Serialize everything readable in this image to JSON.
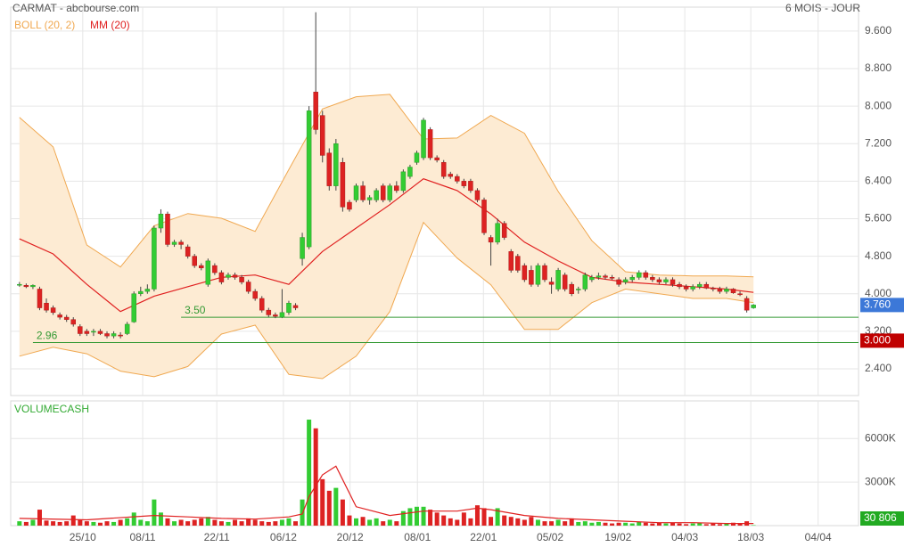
{
  "chart_data": {
    "type": "candlestick",
    "title": "CARMAT - abcbourse.com",
    "subtitle": "6 MOIS - JOUR",
    "xlim": [
      -1.3,
      124.6
    ],
    "xticks": [
      {
        "value": 9.4,
        "label": "25/10"
      },
      {
        "value": 18.3,
        "label": "08/11"
      },
      {
        "value": 29.3,
        "label": "22/11"
      },
      {
        "value": 39.2,
        "label": "06/12"
      },
      {
        "value": 49.1,
        "label": "20/12"
      },
      {
        "value": 59.1,
        "label": "08/01"
      },
      {
        "value": 68.9,
        "label": "22/01"
      },
      {
        "value": 78.8,
        "label": "05/02"
      },
      {
        "value": 88.9,
        "label": "19/02"
      },
      {
        "value": 98.8,
        "label": "04/03"
      },
      {
        "value": 108.6,
        "label": "18/03"
      },
      {
        "value": 118.6,
        "label": "04/04"
      }
    ],
    "ylim": [
      1.83,
      10.11
    ],
    "yticks": [
      {
        "value": 9.6,
        "label": "9.600"
      },
      {
        "value": 8.8,
        "label": "8.800"
      },
      {
        "value": 8.0,
        "label": "8.000"
      },
      {
        "value": 7.2,
        "label": "7.200"
      },
      {
        "value": 6.4,
        "label": "6.400"
      },
      {
        "value": 5.6,
        "label": "5.600"
      },
      {
        "value": 4.8,
        "label": "4.800"
      },
      {
        "value": 4.0,
        "label": "4.000"
      },
      {
        "value": 3.2,
        "label": "3.200"
      },
      {
        "value": 2.4,
        "label": "2.400"
      }
    ],
    "grid": true,
    "up_color": "#33cc33",
    "down_color": "#dd2222",
    "candles": [
      [
        4.2,
        4.25,
        4.15,
        4.2
      ],
      [
        4.18,
        4.22,
        4.12,
        4.15
      ],
      [
        4.15,
        4.2,
        4.1,
        4.18
      ],
      [
        4.1,
        4.15,
        3.65,
        3.7
      ],
      [
        3.8,
        3.9,
        3.6,
        3.65
      ],
      [
        3.7,
        3.75,
        3.55,
        3.6
      ],
      [
        3.55,
        3.6,
        3.45,
        3.5
      ],
      [
        3.5,
        3.55,
        3.4,
        3.45
      ],
      [
        3.45,
        3.5,
        3.3,
        3.35
      ],
      [
        3.3,
        3.35,
        3.1,
        3.15
      ],
      [
        3.2,
        3.25,
        3.1,
        3.15
      ],
      [
        3.18,
        3.25,
        3.1,
        3.2
      ],
      [
        3.2,
        3.25,
        3.12,
        3.15
      ],
      [
        3.15,
        3.2,
        3.05,
        3.1
      ],
      [
        3.1,
        3.2,
        3.05,
        3.15
      ],
      [
        3.12,
        3.18,
        3.05,
        3.1
      ],
      [
        3.15,
        3.4,
        3.12,
        3.35
      ],
      [
        3.4,
        4.05,
        3.38,
        4.0
      ],
      [
        4.0,
        4.15,
        3.95,
        4.05
      ],
      [
        4.05,
        4.2,
        4.0,
        4.1
      ],
      [
        4.1,
        5.45,
        4.05,
        5.4
      ],
      [
        5.4,
        5.8,
        5.3,
        5.7
      ],
      [
        5.7,
        5.75,
        5.0,
        5.05
      ],
      [
        5.05,
        5.15,
        5.0,
        5.1
      ],
      [
        5.1,
        5.15,
        4.95,
        5.05
      ],
      [
        5.0,
        5.05,
        4.75,
        4.8
      ],
      [
        4.8,
        4.85,
        4.55,
        4.6
      ],
      [
        4.6,
        4.65,
        4.5,
        4.55
      ],
      [
        4.2,
        4.75,
        4.15,
        4.7
      ],
      [
        4.6,
        4.65,
        4.4,
        4.45
      ],
      [
        4.45,
        4.5,
        4.2,
        4.25
      ],
      [
        4.35,
        4.45,
        4.3,
        4.4
      ],
      [
        4.4,
        4.45,
        4.3,
        4.35
      ],
      [
        4.35,
        4.4,
        4.2,
        4.25
      ],
      [
        4.25,
        4.3,
        4.0,
        4.05
      ],
      [
        4.05,
        4.1,
        3.85,
        3.9
      ],
      [
        3.9,
        3.95,
        3.6,
        3.65
      ],
      [
        3.65,
        3.7,
        3.5,
        3.55
      ],
      [
        3.55,
        3.6,
        3.48,
        3.52
      ],
      [
        3.5,
        4.1,
        3.48,
        3.6
      ],
      [
        3.6,
        3.85,
        3.55,
        3.8
      ],
      [
        3.75,
        3.8,
        3.65,
        3.7
      ],
      [
        4.75,
        5.3,
        4.6,
        5.2
      ],
      [
        5.0,
        8.0,
        4.95,
        7.9
      ],
      [
        8.3,
        10.0,
        7.4,
        7.5
      ],
      [
        7.8,
        7.9,
        6.8,
        6.95
      ],
      [
        7.0,
        7.1,
        6.2,
        6.3
      ],
      [
        6.3,
        7.3,
        6.2,
        7.2
      ],
      [
        6.8,
        6.9,
        5.75,
        5.85
      ],
      [
        5.95,
        6.0,
        5.75,
        5.8
      ],
      [
        6.0,
        6.35,
        5.95,
        6.3
      ],
      [
        6.3,
        6.4,
        5.95,
        6.0
      ],
      [
        6.0,
        6.1,
        5.9,
        6.05
      ],
      [
        6.0,
        6.25,
        5.95,
        6.2
      ],
      [
        6.3,
        6.35,
        5.95,
        6.0
      ],
      [
        6.0,
        6.35,
        5.95,
        6.3
      ],
      [
        6.3,
        6.4,
        6.15,
        6.2
      ],
      [
        6.2,
        6.65,
        6.15,
        6.6
      ],
      [
        6.5,
        6.75,
        6.45,
        6.7
      ],
      [
        6.8,
        7.05,
        6.75,
        7.0
      ],
      [
        6.9,
        7.75,
        6.85,
        7.7
      ],
      [
        7.5,
        7.55,
        6.85,
        6.9
      ],
      [
        6.9,
        6.95,
        6.8,
        6.85
      ],
      [
        6.8,
        6.85,
        6.45,
        6.5
      ],
      [
        6.55,
        6.6,
        6.45,
        6.5
      ],
      [
        6.5,
        6.55,
        6.35,
        6.4
      ],
      [
        6.4,
        6.45,
        6.25,
        6.3
      ],
      [
        6.4,
        6.45,
        6.15,
        6.2
      ],
      [
        6.2,
        6.25,
        5.95,
        6.0
      ],
      [
        6.0,
        6.05,
        5.25,
        5.3
      ],
      [
        5.2,
        5.25,
        4.6,
        5.1
      ],
      [
        5.1,
        5.6,
        5.05,
        5.5
      ],
      [
        5.5,
        5.55,
        5.15,
        5.2
      ],
      [
        4.9,
        4.95,
        4.45,
        4.5
      ],
      [
        4.8,
        4.85,
        4.45,
        4.5
      ],
      [
        4.6,
        4.65,
        4.25,
        4.3
      ],
      [
        4.5,
        4.6,
        4.15,
        4.2
      ],
      [
        4.2,
        4.65,
        4.15,
        4.6
      ],
      [
        4.6,
        4.65,
        4.25,
        4.3
      ],
      [
        4.25,
        4.35,
        4.0,
        4.2
      ],
      [
        4.1,
        4.55,
        4.05,
        4.5
      ],
      [
        4.4,
        4.45,
        4.05,
        4.1
      ],
      [
        4.2,
        4.25,
        3.95,
        4.0
      ],
      [
        4.1,
        4.15,
        4.0,
        4.1
      ],
      [
        4.1,
        4.45,
        4.05,
        4.4
      ],
      [
        4.3,
        4.4,
        4.25,
        4.35
      ],
      [
        4.35,
        4.45,
        4.3,
        4.38
      ],
      [
        4.38,
        4.42,
        4.3,
        4.35
      ],
      [
        4.35,
        4.4,
        4.3,
        4.33
      ],
      [
        4.3,
        4.35,
        4.15,
        4.2
      ],
      [
        4.25,
        4.35,
        4.2,
        4.3
      ],
      [
        4.3,
        4.4,
        4.25,
        4.35
      ],
      [
        4.35,
        4.5,
        4.3,
        4.45
      ],
      [
        4.45,
        4.5,
        4.3,
        4.35
      ],
      [
        4.35,
        4.4,
        4.25,
        4.3
      ],
      [
        4.3,
        4.35,
        4.2,
        4.25
      ],
      [
        4.25,
        4.35,
        4.2,
        4.3
      ],
      [
        4.3,
        4.35,
        4.15,
        4.2
      ],
      [
        4.2,
        4.25,
        4.1,
        4.15
      ],
      [
        4.15,
        4.2,
        4.05,
        4.1
      ],
      [
        4.1,
        4.2,
        4.05,
        4.15
      ],
      [
        4.15,
        4.25,
        4.1,
        4.2
      ],
      [
        4.2,
        4.25,
        4.1,
        4.12
      ],
      [
        4.12,
        4.15,
        4.05,
        4.1
      ],
      [
        4.1,
        4.15,
        4.0,
        4.05
      ],
      [
        4.05,
        4.15,
        4.0,
        4.1
      ],
      [
        4.1,
        4.12,
        4.0,
        4.02
      ],
      [
        4.0,
        4.05,
        3.95,
        3.98
      ],
      [
        3.9,
        3.95,
        3.6,
        3.65
      ],
      [
        3.7,
        3.78,
        3.68,
        3.76
      ]
    ],
    "bollinger": {
      "name": "BOLL (20, 2)",
      "color": "#f0a850",
      "fill": "#fdebd3",
      "x": [
        0,
        5,
        10,
        15,
        20,
        25,
        30,
        35,
        40,
        45,
        50,
        55,
        60,
        65,
        70,
        75,
        80,
        85,
        90,
        95,
        100,
        105,
        109
      ],
      "upper": [
        7.76,
        7.13,
        5.04,
        4.57,
        5.45,
        5.71,
        5.61,
        5.33,
        6.65,
        7.94,
        8.2,
        8.25,
        7.3,
        7.32,
        7.8,
        7.42,
        6.18,
        5.13,
        4.47,
        4.4,
        4.38,
        4.38,
        4.36
      ],
      "lower": [
        2.67,
        2.86,
        2.72,
        2.35,
        2.23,
        2.45,
        3.14,
        3.33,
        2.28,
        2.19,
        2.67,
        3.62,
        5.52,
        4.76,
        4.19,
        3.24,
        3.24,
        3.81,
        4.1,
        4.0,
        3.9,
        3.9,
        3.81
      ]
    },
    "ma": {
      "name": "MM (20)",
      "color": "#e02020",
      "x": [
        0,
        5,
        10,
        15,
        20,
        25,
        30,
        35,
        40,
        45,
        50,
        55,
        60,
        65,
        70,
        75,
        80,
        85,
        90,
        95,
        100,
        105,
        109
      ],
      "values": [
        5.17,
        4.85,
        4.2,
        3.62,
        3.95,
        4.15,
        4.35,
        4.4,
        4.2,
        4.9,
        5.4,
        5.9,
        6.45,
        6.2,
        5.7,
        5.1,
        4.7,
        4.35,
        4.25,
        4.2,
        4.15,
        4.1,
        4.03
      ]
    },
    "levels": [
      {
        "value": 3.5,
        "label": "3.50",
        "from": 24,
        "color": "#339933"
      },
      {
        "value": 2.96,
        "label": "2.96",
        "from": 2,
        "color": "#339933"
      }
    ],
    "price_labels": [
      {
        "value": 3.76,
        "label": "3.760",
        "color": "#3c78d8"
      },
      {
        "value": 3.0,
        "label": "3.000",
        "color": "#c00000"
      }
    ],
    "volume": {
      "name": "VOLUMECASH",
      "color": "#33aa33",
      "ylim": [
        0,
        8590000
      ],
      "yticks": [
        {
          "value": 6000000,
          "label": "6000K"
        },
        {
          "value": 3000000,
          "label": "3000K"
        }
      ],
      "values": [
        300000,
        250000,
        400000,
        1100000,
        350000,
        300000,
        250000,
        300000,
        700000,
        400000,
        300000,
        250000,
        200000,
        300000,
        250000,
        400000,
        500000,
        900000,
        400000,
        300000,
        1800000,
        900000,
        500000,
        300000,
        400000,
        300000,
        400000,
        500000,
        600000,
        400000,
        300000,
        250000,
        400000,
        300000,
        500000,
        400000,
        300000,
        250000,
        300000,
        400000,
        500000,
        300000,
        1800000,
        7300000,
        6700000,
        3200000,
        2400000,
        2600000,
        1800000,
        700000,
        500000,
        600000,
        400000,
        500000,
        300000,
        400000,
        300000,
        1000000,
        1200000,
        1300000,
        1300000,
        1100000,
        900000,
        700000,
        500000,
        400000,
        900000,
        500000,
        1400000,
        1200000,
        600000,
        1200000,
        700000,
        600000,
        500000,
        400000,
        600000,
        400000,
        300000,
        300000,
        400000,
        300000,
        500000,
        250000,
        300000,
        200000,
        250000,
        200000,
        150000,
        200000,
        200000,
        150000,
        250000,
        200000,
        150000,
        200000,
        150000,
        200000,
        150000,
        100000,
        150000,
        200000,
        100000,
        150000,
        100000,
        150000,
        200000,
        150000,
        300000,
        30806
      ],
      "ma_color": "#e02020",
      "ma_x": [
        0,
        10,
        20,
        25,
        30,
        35,
        40,
        42,
        43,
        45,
        47,
        50,
        55,
        60,
        65,
        68,
        70,
        75,
        80,
        85,
        90,
        95,
        100,
        105,
        109
      ],
      "ma": [
        500000,
        400000,
        700000,
        600000,
        500000,
        450000,
        600000,
        800000,
        2000000,
        3500000,
        4100000,
        1300000,
        700000,
        1000000,
        1000000,
        1200000,
        1100000,
        700000,
        500000,
        400000,
        300000,
        200000,
        200000,
        150000,
        150000
      ],
      "last_label": {
        "value": 30806,
        "label": "30 806",
        "color": "#22aa22"
      }
    }
  }
}
